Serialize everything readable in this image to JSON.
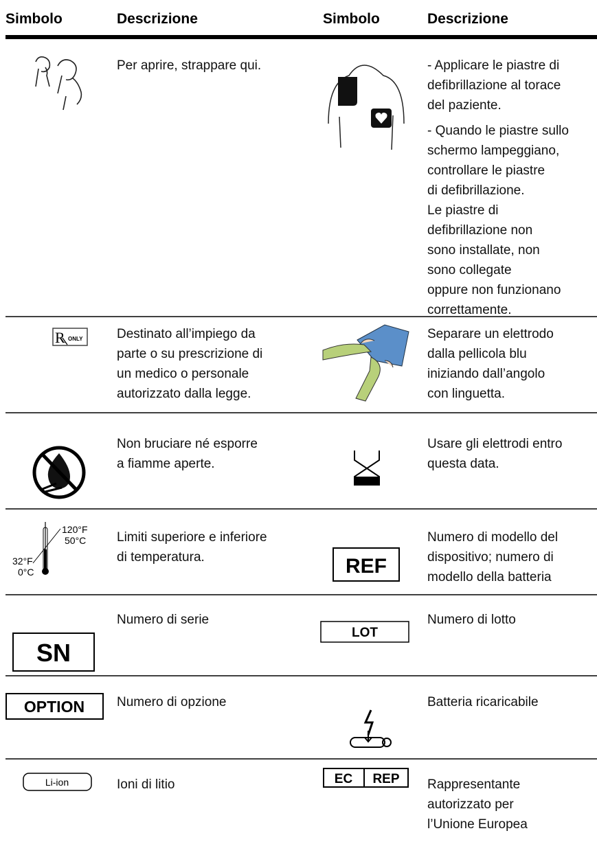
{
  "table": {
    "headers": [
      "Simbolo",
      "Descrizione",
      "Simbolo",
      "Descrizione"
    ],
    "rows": [
      [
        {
          "description": [
            [
              "Per aprire, strappare qui."
            ]
          ]
        },
        {
          "description": [
            [
              "- Applicare le piastre di",
              "defibrillazione al torace",
              "del paziente."
            ],
            [
              "- Quando le piastre sullo",
              "schermo lampeggiano,",
              "controllare le piastre",
              "di defibrillazione.",
              "Le piastre di",
              "defibrillazione non",
              "sono installate, non",
              "sono collegate",
              "oppure non funzionano",
              "correttamente."
            ]
          ]
        }
      ],
      [
        {
          "symbol": [
            "ONLY"
          ],
          "description": [
            [
              "Destinato all’impiego da",
              "parte o su prescrizione di",
              "un medico o personale",
              "autorizzato dalla legge."
            ]
          ]
        },
        {
          "description": [
            [
              "Separare un elettrodo",
              "dalla pellicola blu",
              "iniziando dall’angolo",
              "con linguetta."
            ]
          ]
        }
      ],
      [
        {
          "description": [
            [
              "Non bruciare né esporre",
              "a fiamme aperte."
            ]
          ]
        },
        {
          "description": [
            [
              "Usare gli elettrodi entro",
              "questa data."
            ]
          ]
        }
      ],
      [
        {
          "symbol": [
            "120°F",
            "50°C",
            "32°F",
            "0°C"
          ],
          "description": [
            [
              "Limiti superiore e inferiore",
              "di temperatura."
            ]
          ]
        },
        {
          "symbol": [
            "REF"
          ],
          "description": [
            [
              "Numero di modello del",
              "dispositivo; numero di",
              "modello della batteria"
            ]
          ]
        }
      ],
      [
        {
          "symbol": [
            "SN"
          ],
          "description": [
            [
              "Numero di serie"
            ]
          ]
        },
        {
          "symbol": [
            "LOT"
          ],
          "description": [
            [
              "Numero di lotto"
            ]
          ]
        }
      ],
      [
        {
          "symbol": [
            "OPTION"
          ],
          "description": [
            [
              "Numero di opzione"
            ]
          ]
        },
        {
          "description": [
            [
              "Batteria ricaricabile"
            ]
          ]
        }
      ],
      [
        {
          "symbol": [
            "Li-ion"
          ],
          "description": [
            [
              "Ioni di litio"
            ]
          ]
        },
        {
          "symbol": [
            "EC",
            "REP"
          ],
          "description": [
            [
              "Rappresentante",
              "autorizzato per",
              "l’Unione Europea"
            ]
          ]
        }
      ]
    ]
  }
}
